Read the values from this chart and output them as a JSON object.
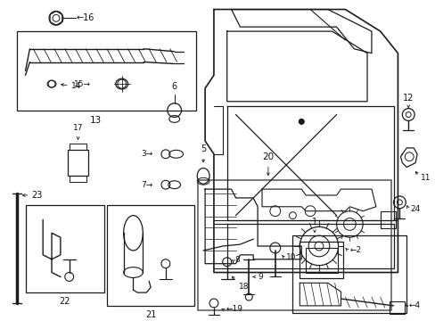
{
  "background_color": "#ffffff",
  "fig_width": 4.89,
  "fig_height": 3.6,
  "dpi": 100,
  "line_color": "#1a1a1a",
  "text_color": "#111111"
}
